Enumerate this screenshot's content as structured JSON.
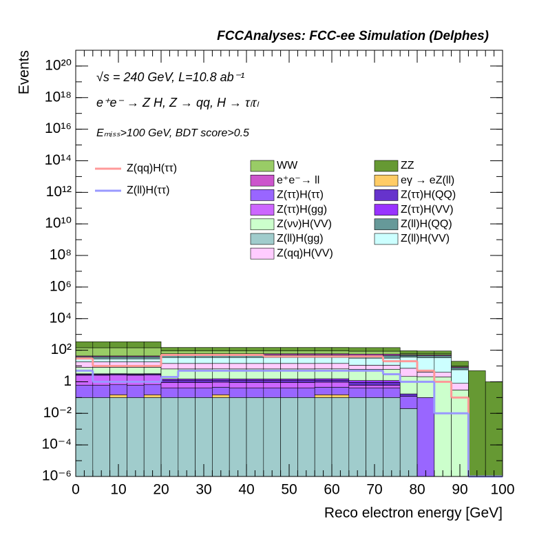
{
  "chart_data": {
    "type": "stacked-histogram",
    "title": "FCCAnalyses: FCC-ee Simulation (Delphes)",
    "annotations": [
      "√s = 240 GeV, L=10.8 ab⁻¹",
      "e⁺e⁻ → Z H, Z → qq, H → τₗτₗ",
      "Eₘᵢₛₛ>100 GeV, BDT score>0.5"
    ],
    "xlabel": "Reco electron energy [GeV]",
    "ylabel": "Events",
    "log_y": true,
    "xlim": [
      0,
      100
    ],
    "ylim": [
      1e-06,
      1e+21
    ],
    "xticks": [
      0,
      10,
      20,
      30,
      40,
      50,
      60,
      70,
      80,
      90,
      100
    ],
    "yticks": [
      {
        "value": 1e-06,
        "label": "10⁻⁶"
      },
      {
        "value": 0.0001,
        "label": "10⁻⁴"
      },
      {
        "value": 0.01,
        "label": "10⁻²"
      },
      1,
      {
        "value": 100,
        "label": "10²"
      },
      {
        "value": 10000,
        "label": "10⁴"
      },
      {
        "value": 1000000.0,
        "label": "10⁶"
      },
      {
        "value": 100000000.0,
        "label": "10⁸"
      },
      {
        "value": 10000000000.0,
        "label": "10¹⁰"
      },
      {
        "value": 1000000000000.0,
        "label": "10¹²"
      },
      {
        "value": 100000000000000.0,
        "label": "10¹⁴"
      },
      {
        "value": 1e+16,
        "label": "10¹⁶"
      },
      {
        "value": 1e+18,
        "label": "10¹⁸"
      },
      {
        "value": 1e+20,
        "label": "10²⁰"
      }
    ],
    "bins": [
      0,
      4,
      8,
      12,
      16,
      20,
      24,
      28,
      32,
      36,
      40,
      44,
      48,
      52,
      56,
      60,
      64,
      68,
      72,
      76,
      80,
      84,
      88,
      92,
      96,
      100
    ],
    "series": [
      {
        "name": "WW",
        "color": "#99cc66",
        "values": [
          100,
          100,
          100,
          100,
          100,
          30,
          30,
          30,
          30,
          30,
          30,
          30,
          30,
          30,
          30,
          30,
          30,
          30,
          30,
          10,
          10,
          10,
          1,
          0,
          0
        ]
      },
      {
        "name": "ZZ",
        "color": "#669933",
        "values": [
          200,
          200,
          200,
          200,
          200,
          60,
          60,
          60,
          60,
          60,
          60,
          60,
          60,
          60,
          60,
          60,
          60,
          60,
          60,
          30,
          30,
          30,
          10,
          5,
          1
        ]
      },
      {
        "name": "e⁺e⁻→ ll",
        "color": "#cc55cc",
        "values": [
          5,
          5,
          5,
          5,
          5,
          10,
          10,
          10,
          10,
          10,
          10,
          10,
          10,
          10,
          10,
          10,
          10,
          10,
          10,
          5,
          5,
          5,
          1,
          0,
          0
        ]
      },
      {
        "name": "eγ → eZ(ll)",
        "color": "#ffcc66",
        "values": [
          0,
          0,
          0.05,
          0,
          0.05,
          0,
          0,
          0,
          0.05,
          0,
          0,
          0,
          0,
          0,
          0.05,
          0.05,
          0,
          0,
          0,
          0,
          0,
          0,
          0,
          0,
          0
        ]
      },
      {
        "name": "Z(ττ)H(ττ)",
        "color": "#9966ff",
        "values": [
          0.5,
          0.5,
          0.5,
          0.5,
          0.5,
          0.3,
          0.3,
          0.3,
          0.3,
          0.3,
          0.3,
          0.3,
          0.3,
          0.3,
          0.3,
          0.3,
          0.3,
          0.3,
          0.3,
          0.1,
          0.1,
          0,
          0,
          0,
          0
        ]
      },
      {
        "name": "Z(ττ)H(QQ)",
        "color": "#6633cc",
        "values": [
          0.3,
          0.3,
          0.3,
          0.3,
          0.3,
          0.3,
          0.3,
          0.3,
          0.3,
          0.3,
          0.3,
          0.3,
          0.3,
          0.3,
          0.3,
          0.3,
          0.3,
          0.3,
          0.3,
          0.05,
          0,
          0,
          0,
          0,
          0
        ]
      },
      {
        "name": "Z(ττ)H(gg)",
        "color": "#cc66ff",
        "values": [
          2,
          2,
          2,
          2,
          2,
          0.5,
          0.5,
          0.5,
          0.5,
          0.5,
          0.5,
          0.5,
          0.5,
          0.5,
          0.5,
          0.5,
          0.2,
          0.2,
          0.2,
          0,
          0,
          0,
          0,
          0,
          0
        ]
      },
      {
        "name": "Z(ττ)H(VV)",
        "color": "#9933ff",
        "values": [
          0.3,
          0.3,
          0.3,
          0.3,
          0.3,
          0.3,
          0.3,
          0.3,
          0.3,
          0.3,
          0.3,
          0.3,
          0.3,
          0.3,
          0.3,
          0.3,
          0.3,
          0.3,
          0.3,
          0,
          0,
          0,
          0,
          0,
          0
        ]
      },
      {
        "name": "Z(νν)H(VV)",
        "color": "#ccffcc",
        "values": [
          5,
          5,
          5,
          5,
          5,
          5,
          5,
          5,
          5,
          5,
          5,
          5,
          5,
          5,
          5,
          5,
          5,
          5,
          5,
          2,
          2,
          2,
          0.3,
          0,
          0
        ]
      },
      {
        "name": "Z(ll)H(QQ)",
        "color": "#669999",
        "values": [
          10,
          10,
          10,
          10,
          10,
          15,
          15,
          15,
          15,
          15,
          15,
          15,
          15,
          15,
          15,
          15,
          15,
          15,
          15,
          10,
          10,
          10,
          2,
          0,
          0
        ]
      },
      {
        "name": "Z(ll)H(gg)",
        "color": "#a0cccc",
        "values": [
          0.1,
          0.1,
          0.1,
          0.1,
          0.1,
          0.1,
          0.1,
          0.1,
          0.1,
          0.1,
          0.1,
          0.1,
          0.1,
          0.1,
          0.1,
          0.1,
          0.1,
          0.1,
          0.1,
          0.02,
          0,
          0,
          0,
          0,
          0
        ]
      },
      {
        "name": "Z(ll)H(VV)",
        "color": "#ccffff",
        "values": [
          10,
          10,
          10,
          10,
          10,
          20,
          20,
          20,
          20,
          20,
          20,
          20,
          20,
          20,
          20,
          20,
          20,
          20,
          20,
          30,
          30,
          30,
          5,
          0,
          0
        ]
      },
      {
        "name": "Z(qq)H(VV)",
        "color": "#ffccff",
        "values": [
          10,
          10,
          10,
          10,
          10,
          8,
          8,
          8,
          8,
          8,
          8,
          8,
          8,
          8,
          8,
          8,
          5,
          5,
          5,
          5,
          2,
          2,
          0.5,
          0,
          0
        ]
      }
    ],
    "lines": [
      {
        "name": "Z(qq)H(ττ)",
        "color": "#ff9999",
        "values": [
          30,
          10,
          10,
          10,
          10,
          50,
          50,
          50,
          50,
          50,
          50,
          40,
          40,
          40,
          40,
          40,
          40,
          40,
          20,
          20,
          5,
          1,
          0.1,
          0,
          0
        ]
      },
      {
        "name": "Z(ll)H(ττ)",
        "color": "#9999ff",
        "values": [
          5,
          1,
          1,
          1,
          1,
          2,
          5,
          5,
          5,
          5,
          5,
          5,
          5,
          5,
          5,
          5,
          5,
          5,
          3,
          1,
          1,
          0.01,
          0.01,
          0,
          0
        ]
      }
    ]
  }
}
